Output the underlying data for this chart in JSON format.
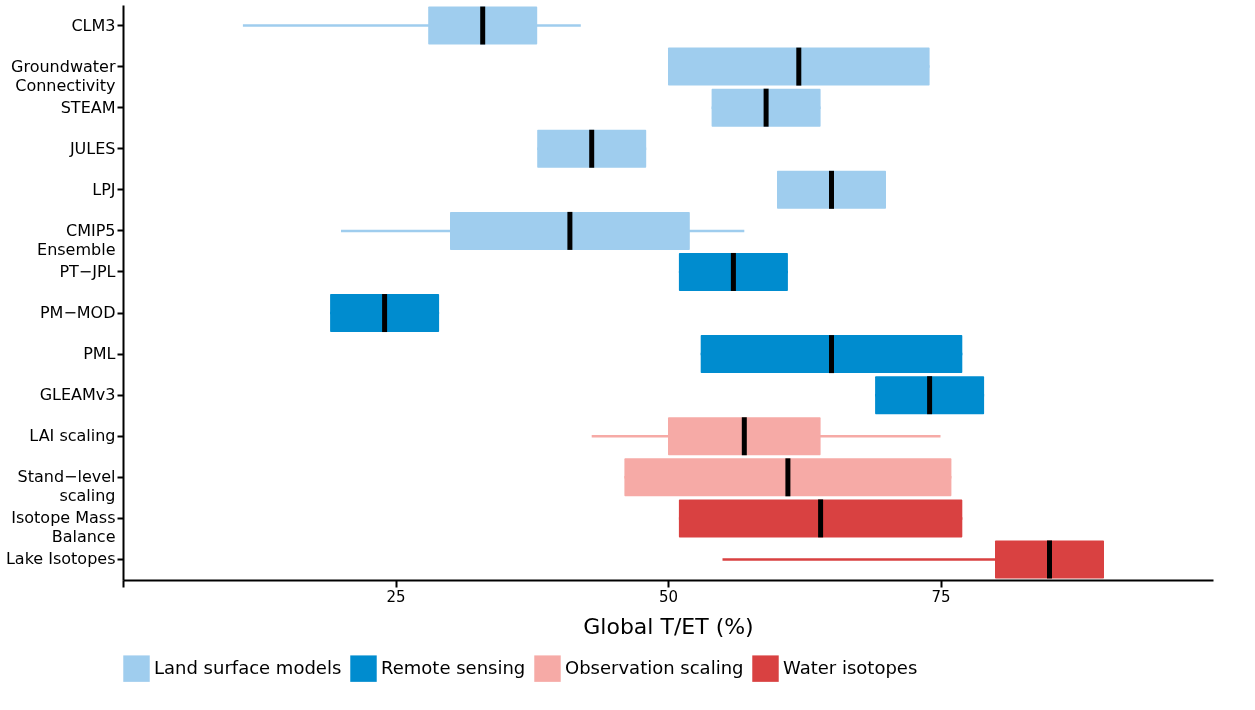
{
  "chart_data": {
    "type": "box",
    "orientation": "horizontal",
    "xlabel": "Global T/ET (%)",
    "legend": "bottom",
    "categories": [
      "CLM3",
      "Groundwater\nConnectivity",
      "STEAM",
      "JULES",
      "LPJ",
      "CMIP5\nEnsemble",
      "PT−JPL",
      "PM−MOD",
      "PML",
      "GLEAMv3",
      "LAI scaling",
      "Stand−level\nscaling",
      "Isotope Mass\nBalance",
      "Lake Isotopes"
    ],
    "xlim": [
      0,
      100
    ],
    "xticks": [
      {
        "value": 0,
        "label": null
      },
      25,
      50,
      75
    ],
    "series": [
      {
        "name": "Land surface models",
        "color": "#9fcdee",
        "boxes": [
          {
            "low": 11,
            "q1": 28,
            "median": 33,
            "q3": 38,
            "high": 42
          },
          {
            "low": 50,
            "q1": 50,
            "median": 62,
            "q3": 74,
            "high": 74
          },
          {
            "low": 54,
            "q1": 54,
            "median": 59,
            "q3": 64,
            "high": 64
          },
          {
            "low": 38,
            "q1": 38,
            "median": 43,
            "q3": 48,
            "high": 48
          },
          {
            "low": 60,
            "q1": 60,
            "median": 65,
            "q3": 70,
            "high": 70
          },
          {
            "low": 20,
            "q1": 30,
            "median": 41,
            "q3": 52,
            "high": 57
          },
          null,
          null,
          null,
          null,
          null,
          null,
          null,
          null
        ]
      },
      {
        "name": "Remote sensing",
        "color": "#008ccf",
        "boxes": [
          null,
          null,
          null,
          null,
          null,
          null,
          {
            "low": 51,
            "q1": 51,
            "median": 56,
            "q3": 61,
            "high": 61
          },
          {
            "low": 19,
            "q1": 19,
            "median": 24,
            "q3": 29,
            "high": 29
          },
          {
            "low": 53,
            "q1": 53,
            "median": 65,
            "q3": 77,
            "high": 77
          },
          {
            "low": 69,
            "q1": 69,
            "median": 74,
            "q3": 79,
            "high": 79
          },
          null,
          null,
          null,
          null
        ]
      },
      {
        "name": "Observation scaling",
        "color": "#f6aaa6",
        "boxes": [
          null,
          null,
          null,
          null,
          null,
          null,
          null,
          null,
          null,
          null,
          {
            "low": 43,
            "q1": 50,
            "median": 57,
            "q3": 64,
            "high": 75
          },
          {
            "low": 46,
            "q1": 46,
            "median": 61,
            "q3": 76,
            "high": 76
          },
          null,
          null
        ]
      },
      {
        "name": "Water isotopes",
        "color": "#d94141",
        "boxes": [
          null,
          null,
          null,
          null,
          null,
          null,
          null,
          null,
          null,
          null,
          null,
          null,
          {
            "low": 51,
            "q1": 51,
            "median": 64,
            "q3": 77,
            "high": 77
          },
          {
            "low": 55,
            "q1": 80,
            "median": 85,
            "q3": 90,
            "high": 90
          }
        ]
      }
    ]
  }
}
